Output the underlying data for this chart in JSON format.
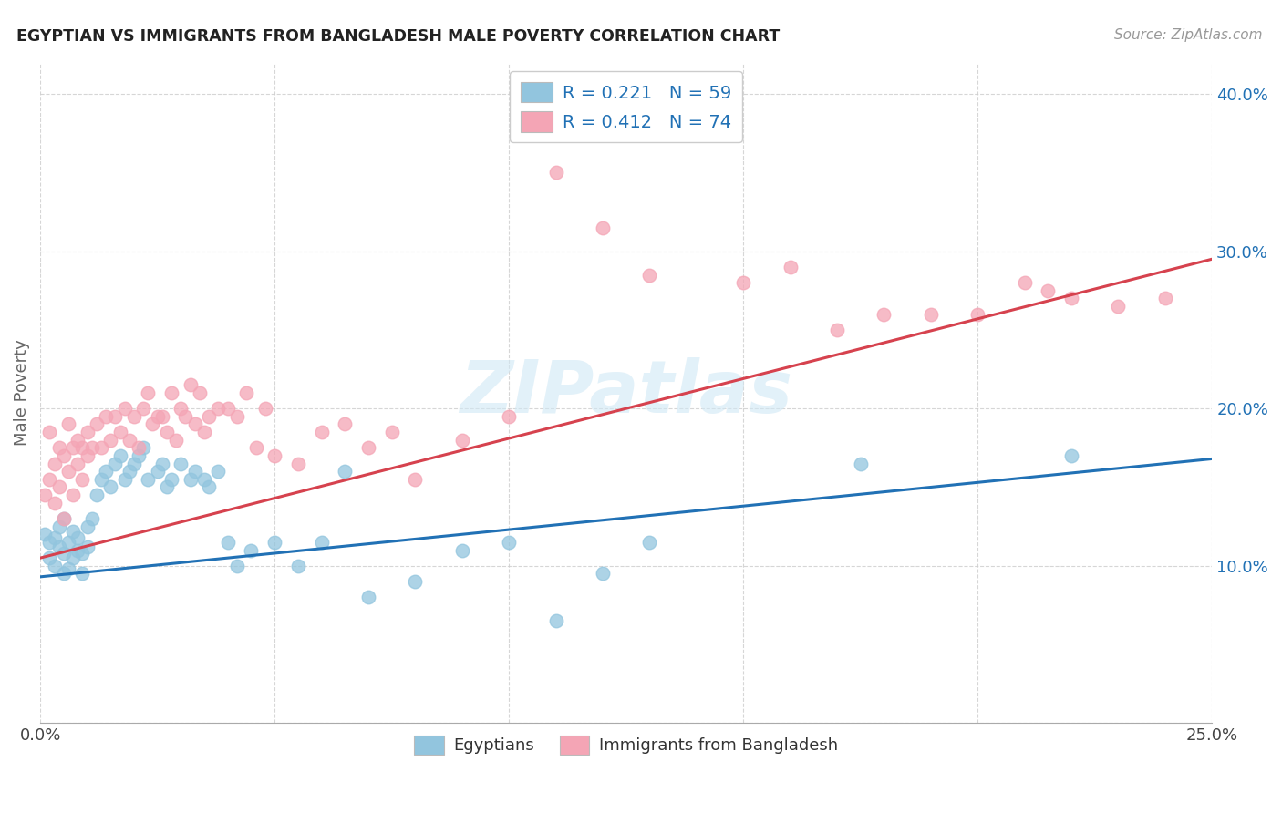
{
  "title": "EGYPTIAN VS IMMIGRANTS FROM BANGLADESH MALE POVERTY CORRELATION CHART",
  "source": "Source: ZipAtlas.com",
  "ylabel": "Male Poverty",
  "xlim": [
    0.0,
    0.25
  ],
  "ylim": [
    0.0,
    0.42
  ],
  "xtick_positions": [
    0.0,
    0.05,
    0.1,
    0.15,
    0.2,
    0.25
  ],
  "xtick_labels": [
    "0.0%",
    "",
    "",
    "",
    "",
    "25.0%"
  ],
  "ytick_positions": [
    0.0,
    0.1,
    0.2,
    0.3,
    0.4
  ],
  "ytick_labels": [
    "",
    "10.0%",
    "20.0%",
    "30.0%",
    "40.0%"
  ],
  "blue_R": "R = 0.221",
  "blue_N": "N = 59",
  "pink_R": "R = 0.412",
  "pink_N": "N = 74",
  "blue_color": "#92c5de",
  "pink_color": "#f4a5b5",
  "blue_line_color": "#2171b5",
  "pink_line_color": "#d6424e",
  "legend_text_color": "#2171b5",
  "watermark": "ZIPatlas",
  "watermark_color": "#d0e8f5",
  "blue_line_x": [
    0.0,
    0.25
  ],
  "blue_line_y": [
    0.093,
    0.168
  ],
  "pink_line_x": [
    0.0,
    0.25
  ],
  "pink_line_y": [
    0.105,
    0.295
  ],
  "blue_scatter_x": [
    0.001,
    0.002,
    0.002,
    0.003,
    0.003,
    0.004,
    0.004,
    0.005,
    0.005,
    0.005,
    0.006,
    0.006,
    0.007,
    0.007,
    0.008,
    0.008,
    0.009,
    0.009,
    0.01,
    0.01,
    0.011,
    0.012,
    0.013,
    0.014,
    0.015,
    0.016,
    0.017,
    0.018,
    0.019,
    0.02,
    0.021,
    0.022,
    0.023,
    0.025,
    0.026,
    0.027,
    0.028,
    0.03,
    0.032,
    0.033,
    0.035,
    0.036,
    0.038,
    0.04,
    0.042,
    0.045,
    0.05,
    0.055,
    0.06,
    0.065,
    0.07,
    0.08,
    0.09,
    0.1,
    0.11,
    0.12,
    0.13,
    0.175,
    0.22
  ],
  "blue_scatter_y": [
    0.12,
    0.115,
    0.105,
    0.1,
    0.118,
    0.112,
    0.125,
    0.095,
    0.108,
    0.13,
    0.098,
    0.115,
    0.105,
    0.122,
    0.11,
    0.118,
    0.095,
    0.108,
    0.112,
    0.125,
    0.13,
    0.145,
    0.155,
    0.16,
    0.15,
    0.165,
    0.17,
    0.155,
    0.16,
    0.165,
    0.17,
    0.175,
    0.155,
    0.16,
    0.165,
    0.15,
    0.155,
    0.165,
    0.155,
    0.16,
    0.155,
    0.15,
    0.16,
    0.115,
    0.1,
    0.11,
    0.115,
    0.1,
    0.115,
    0.16,
    0.08,
    0.09,
    0.11,
    0.115,
    0.065,
    0.095,
    0.115,
    0.165,
    0.17
  ],
  "pink_scatter_x": [
    0.001,
    0.002,
    0.002,
    0.003,
    0.003,
    0.004,
    0.004,
    0.005,
    0.005,
    0.006,
    0.006,
    0.007,
    0.007,
    0.008,
    0.008,
    0.009,
    0.009,
    0.01,
    0.01,
    0.011,
    0.012,
    0.013,
    0.014,
    0.015,
    0.016,
    0.017,
    0.018,
    0.019,
    0.02,
    0.021,
    0.022,
    0.023,
    0.024,
    0.025,
    0.026,
    0.027,
    0.028,
    0.029,
    0.03,
    0.031,
    0.032,
    0.033,
    0.034,
    0.035,
    0.036,
    0.038,
    0.04,
    0.042,
    0.044,
    0.046,
    0.048,
    0.05,
    0.055,
    0.06,
    0.065,
    0.07,
    0.075,
    0.08,
    0.09,
    0.1,
    0.11,
    0.12,
    0.13,
    0.15,
    0.16,
    0.17,
    0.18,
    0.19,
    0.2,
    0.21,
    0.215,
    0.22,
    0.23,
    0.24
  ],
  "pink_scatter_y": [
    0.145,
    0.155,
    0.185,
    0.14,
    0.165,
    0.15,
    0.175,
    0.13,
    0.17,
    0.16,
    0.19,
    0.145,
    0.175,
    0.165,
    0.18,
    0.155,
    0.175,
    0.17,
    0.185,
    0.175,
    0.19,
    0.175,
    0.195,
    0.18,
    0.195,
    0.185,
    0.2,
    0.18,
    0.195,
    0.175,
    0.2,
    0.21,
    0.19,
    0.195,
    0.195,
    0.185,
    0.21,
    0.18,
    0.2,
    0.195,
    0.215,
    0.19,
    0.21,
    0.185,
    0.195,
    0.2,
    0.2,
    0.195,
    0.21,
    0.175,
    0.2,
    0.17,
    0.165,
    0.185,
    0.19,
    0.175,
    0.185,
    0.155,
    0.18,
    0.195,
    0.35,
    0.315,
    0.285,
    0.28,
    0.29,
    0.25,
    0.26,
    0.26,
    0.26,
    0.28,
    0.275,
    0.27,
    0.265,
    0.27
  ]
}
